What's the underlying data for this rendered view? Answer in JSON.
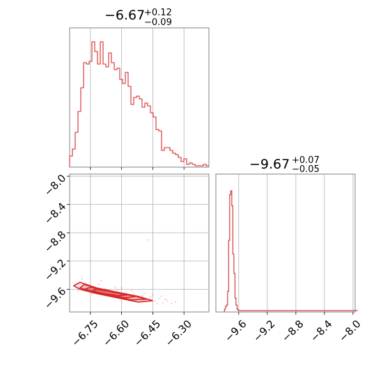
{
  "colors": {
    "series": "#d62728",
    "grid": "#b0b0b0",
    "frame": "#808080"
  },
  "chart_data": {
    "type": "corner",
    "grid": true,
    "parameters": [
      {
        "median": "−6.67",
        "plus": "+0.12",
        "minus": "−0.09",
        "range": [
          -6.85,
          -6.18
        ]
      },
      {
        "median": "−9.67",
        "plus": "+0.07",
        "minus": "−0.05",
        "range": [
          -9.92,
          -7.97
        ]
      }
    ],
    "x_ticks": [
      {
        "value": -6.75,
        "label": "−6.75"
      },
      {
        "value": -6.6,
        "label": "−6.60"
      },
      {
        "value": -6.45,
        "label": "−6.45"
      },
      {
        "value": -6.3,
        "label": "−6.30"
      }
    ],
    "y_ticks": [
      {
        "value": -8.0,
        "label": "−8.0"
      },
      {
        "value": -8.4,
        "label": "−8.4"
      },
      {
        "value": -8.8,
        "label": "−8.8"
      },
      {
        "value": -9.2,
        "label": "−9.2"
      },
      {
        "value": -9.6,
        "label": "−9.6"
      }
    ],
    "p2_ticks": [
      {
        "value": -9.6,
        "label": "−9.6"
      },
      {
        "value": -9.2,
        "label": "−9.2"
      },
      {
        "value": -8.8,
        "label": "−8.8"
      },
      {
        "value": -8.4,
        "label": "−8.4"
      },
      {
        "value": -8.0,
        "label": "−8.0"
      }
    ],
    "hist1": {
      "x_start": -6.85,
      "bin_width": 0.0134,
      "values": [
        0.08,
        0.13,
        0.25,
        0.4,
        0.57,
        0.75,
        0.74,
        0.76,
        0.9,
        0.83,
        0.74,
        0.9,
        0.74,
        0.72,
        0.82,
        0.75,
        0.7,
        0.71,
        0.63,
        0.6,
        0.68,
        0.58,
        0.45,
        0.5,
        0.51,
        0.49,
        0.43,
        0.46,
        0.44,
        0.39,
        0.36,
        0.27,
        0.26,
        0.12,
        0.14,
        0.14,
        0.12,
        0.1,
        0.09,
        0.07,
        0.04,
        0.06,
        0.02,
        0.03,
        0.02,
        0.01,
        0.01,
        0.01,
        0.02,
        0.01
      ]
    },
    "hist2": {
      "x_start": -9.8,
      "bin_width": 0.0147,
      "values": [
        0.02,
        0.04,
        0.05,
        0.15,
        0.52,
        0.85,
        0.88,
        0.77,
        0.42,
        0.28,
        0.1,
        0.05,
        0.02,
        0.01,
        0.01,
        0.01,
        0.01,
        0.01,
        0.01,
        0.01,
        0.01,
        0.01,
        0.01,
        0.01,
        0.01,
        0.01,
        0.01,
        0.01,
        0.01,
        0.01,
        0.01,
        0.01,
        0.01,
        0.01,
        0.01,
        0.01,
        0.01,
        0.01,
        0.01,
        0.01,
        0.01,
        0.01,
        0.01,
        0.01,
        0.01,
        0.01,
        0.01,
        0.01,
        0.01,
        0.01,
        0.01,
        0.01,
        0.01,
        0.01,
        0.01,
        0.01,
        0.01,
        0.01,
        0.01,
        0.01,
        0.01,
        0.01,
        0.01,
        0.01,
        0.01,
        0.01,
        0.01,
        0.01,
        0.01,
        0.01,
        0.01,
        0.01,
        0.01,
        0.01,
        0.01,
        0.01,
        0.01,
        0.01,
        0.01,
        0.01,
        0.01,
        0.01,
        0.01,
        0.01,
        0.01,
        0.01,
        0.01,
        0.01,
        0.01,
        0.01,
        0.01,
        0.01,
        0.01,
        0.01,
        0.01,
        0.01,
        0.01,
        0.01,
        0.01,
        0.01,
        0.01,
        0.01,
        0.01,
        0.01,
        0.01,
        0.01,
        0.01,
        0.01,
        0.01,
        0.01,
        0.01,
        0.01,
        0.01,
        0.01,
        0.01,
        0.01,
        0.01,
        0.01,
        0.01,
        0.01,
        0.01,
        0.01,
        0.01,
        0.01,
        0.01,
        0.01,
        0.01
      ]
    },
    "contours": [
      [
        [
          -6.8,
          -9.5
        ],
        [
          -6.72,
          -9.58
        ],
        [
          -6.62,
          -9.64
        ],
        [
          -6.52,
          -9.7
        ],
        [
          -6.45,
          -9.76
        ],
        [
          -6.52,
          -9.78
        ],
        [
          -6.62,
          -9.72
        ],
        [
          -6.72,
          -9.66
        ],
        [
          -6.8,
          -9.6
        ],
        [
          -6.83,
          -9.55
        ]
      ],
      [
        [
          -6.78,
          -9.53
        ],
        [
          -6.7,
          -9.6
        ],
        [
          -6.61,
          -9.65
        ],
        [
          -6.53,
          -9.7
        ],
        [
          -6.48,
          -9.74
        ],
        [
          -6.55,
          -9.75
        ],
        [
          -6.64,
          -9.7
        ],
        [
          -6.73,
          -9.64
        ],
        [
          -6.8,
          -9.58
        ]
      ],
      [
        [
          -6.75,
          -9.57
        ],
        [
          -6.68,
          -9.62
        ],
        [
          -6.6,
          -9.66
        ],
        [
          -6.53,
          -9.7
        ],
        [
          -6.58,
          -9.72
        ],
        [
          -6.66,
          -9.68
        ],
        [
          -6.74,
          -9.63
        ],
        [
          -6.78,
          -9.6
        ]
      ],
      [
        [
          -6.72,
          -9.6
        ],
        [
          -6.64,
          -9.64
        ],
        [
          -6.57,
          -9.68
        ],
        [
          -6.62,
          -9.69
        ],
        [
          -6.7,
          -9.65
        ],
        [
          -6.74,
          -9.62
        ]
      ]
    ],
    "scatter": [
      [
        -6.82,
        -9.52
      ],
      [
        -6.8,
        -9.58
      ],
      [
        -6.77,
        -9.55
      ],
      [
        -6.75,
        -9.61
      ],
      [
        -6.73,
        -9.57
      ],
      [
        -6.7,
        -9.63
      ],
      [
        -6.68,
        -9.59
      ],
      [
        -6.66,
        -9.62
      ],
      [
        -6.64,
        -9.66
      ],
      [
        -6.62,
        -9.61
      ],
      [
        -6.6,
        -9.68
      ],
      [
        -6.58,
        -9.64
      ],
      [
        -6.56,
        -9.7
      ],
      [
        -6.54,
        -9.66
      ],
      [
        -6.52,
        -9.72
      ],
      [
        -6.5,
        -9.69
      ],
      [
        -6.48,
        -9.74
      ],
      [
        -6.46,
        -9.71
      ],
      [
        -6.44,
        -9.77
      ],
      [
        -6.42,
        -9.73
      ],
      [
        -6.4,
        -9.79
      ],
      [
        -6.38,
        -9.76
      ],
      [
        -6.36,
        -9.8
      ],
      [
        -6.34,
        -9.78
      ],
      [
        -6.7,
        -9.48
      ],
      [
        -6.79,
        -9.45
      ],
      [
        -6.6,
        -9.58
      ],
      [
        -6.55,
        -9.62
      ],
      [
        -6.65,
        -9.7
      ],
      [
        -6.49,
        -9.66
      ],
      [
        -6.45,
        -9.68
      ],
      [
        -6.41,
        -9.7
      ],
      [
        -6.74,
        -9.66
      ],
      [
        -6.81,
        -9.62
      ],
      [
        -6.47,
        -8.9
      ],
      [
        -6.58,
        -9.74
      ],
      [
        -6.43,
        -9.8
      ],
      [
        -6.39,
        -9.74
      ],
      [
        -6.71,
        -9.53
      ],
      [
        -6.63,
        -9.57
      ]
    ]
  }
}
